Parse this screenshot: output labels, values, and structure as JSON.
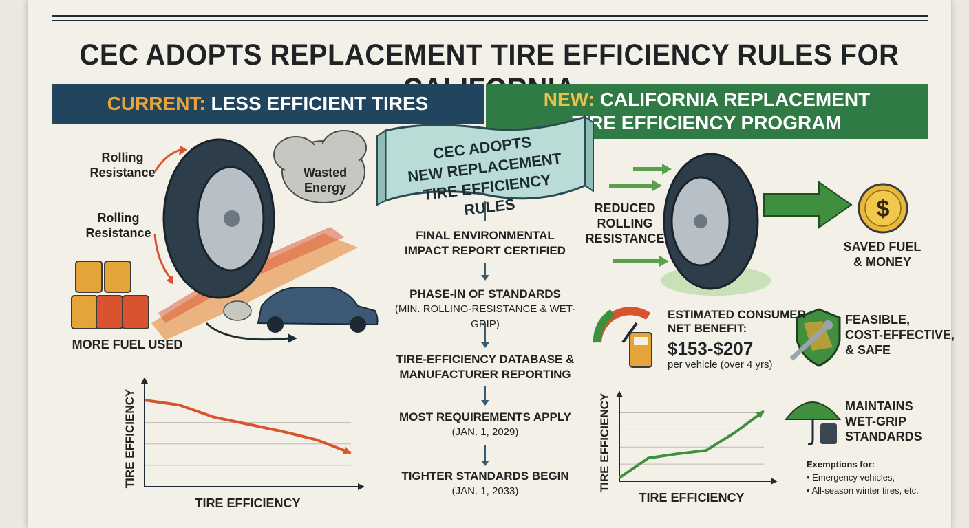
{
  "title": "CEC ADOPTS REPLACEMENT TIRE EFFICIENCY RULES FOR CALIFORNIA",
  "left_banner": {
    "accent": "CURRENT:",
    "text": "LESS EFFICIENT TIRES"
  },
  "right_banner": {
    "accent": "NEW:",
    "line1": "CALIFORNIA REPLACEMENT",
    "line2": "TIRE EFFICIENCY PROGRAM"
  },
  "ribbon": {
    "line1": "CEC ADOPTS",
    "line2": "NEW REPLACEMENT",
    "line3": "TIRE EFFICIENCY RULES"
  },
  "left_panel": {
    "rolling1": {
      "line1": "Rolling",
      "line2": "Resistance"
    },
    "rolling2": {
      "line1": "Rolling",
      "line2": "Resistance"
    },
    "wasted": {
      "line1": "Wasted",
      "line2": "Energy"
    },
    "fuel": "MORE FUEL USED"
  },
  "right_panel": {
    "reduced": {
      "line1": "REDUCED",
      "line2": "ROLLING",
      "line3": "RESISTANCE"
    },
    "saved": {
      "line1": "SAVED FUEL",
      "line2": "& MONEY"
    },
    "dollar": "$",
    "benefit": {
      "line1": "ESTIMATED CONSUMER",
      "line2": "NET BENEFIT:",
      "amount": "$153-$207",
      "sub": "per vehicle (over 4 yrs)"
    },
    "feasible": {
      "line1": "FEASIBLE,",
      "line2": "COST-EFFECTIVE,",
      "line3": "& SAFE"
    },
    "wetgrip": {
      "line1": "MAINTAINS",
      "line2": "WET-GRIP",
      "line3": "STANDARDS"
    },
    "exemptions": {
      "heading": "Exemptions for:",
      "items": [
        "• Emergency vehicles,",
        "• All-season winter tires, etc."
      ]
    }
  },
  "timeline": [
    {
      "title": "FINAL ENVIRONMENTAL",
      "title2": "IMPACT REPORT CERTIFIED",
      "sub": ""
    },
    {
      "title": "PHASE-IN OF STANDARDS",
      "title2": "",
      "sub": "(MIN. ROLLING-RESISTANCE & WET-GRIP)"
    },
    {
      "title": "TIRE-EFFICIENCY DATABASE &",
      "title2": "MANUFACTURER REPORTING",
      "sub": ""
    },
    {
      "title": "MOST REQUIREMENTS APPLY",
      "title2": "",
      "sub": "(JAN. 1, 2029)"
    },
    {
      "title": "TIGHTER STANDARDS BEGIN",
      "title2": "",
      "sub": "(JAN. 1, 2033)"
    }
  ],
  "chart_data": [
    {
      "type": "line",
      "xlabel": "TIRE EFFICIENCY",
      "ylabel": "TIRE EFFICIENCY",
      "grid": true,
      "x": [
        0,
        1,
        2,
        3,
        4,
        5,
        6
      ],
      "values": [
        7.2,
        6.8,
        5.8,
        5.2,
        4.6,
        3.9,
        2.8
      ],
      "ylim": [
        0,
        8
      ],
      "color": "#d9532f"
    },
    {
      "type": "line",
      "xlabel": "TIRE EFFICIENCY",
      "ylabel": "TIRE EFFICIENCY",
      "grid": true,
      "x": [
        0,
        1,
        2,
        3,
        4,
        5
      ],
      "values": [
        0.4,
        2.7,
        3.2,
        3.6,
        5.7,
        8.2
      ],
      "ylim": [
        0,
        9
      ],
      "color": "#3f8f3f"
    }
  ],
  "colors": {
    "navy": "#21445f",
    "green": "#2f7a45",
    "orange": "#e8a43a",
    "red": "#d9532f"
  }
}
